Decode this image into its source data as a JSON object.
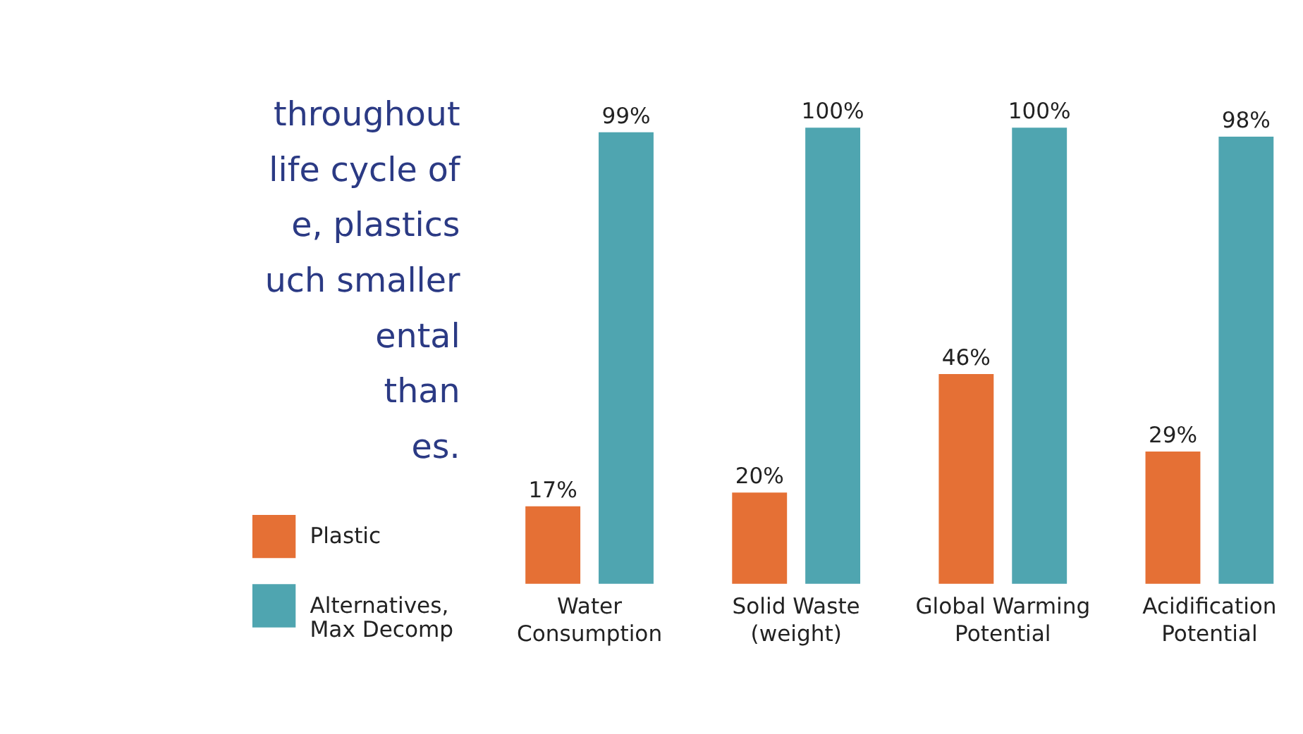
{
  "chart_data": {
    "type": "bar",
    "categories": [
      "Water\nConsumption",
      "Solid Waste\n(weight)",
      "Global Warming\nPotential",
      "Acidification\nPotential"
    ],
    "series": [
      {
        "name": "Plastic",
        "color": "#e57035",
        "values": [
          17,
          20,
          46,
          29
        ],
        "value_labels": [
          "17%",
          "20%",
          "46%",
          "29%"
        ]
      },
      {
        "name": "Alternatives,\nMax Decomp",
        "color": "#4fa5b0",
        "values": [
          99,
          100,
          100,
          98
        ],
        "value_labels": [
          "99%",
          "100%",
          "100%",
          "98%"
        ]
      }
    ],
    "annotations": [
      "throughout\nlife cycle of\ne, plastics\nuch smaller\nental\nthan\nes."
    ],
    "legend": "bottom left"
  }
}
